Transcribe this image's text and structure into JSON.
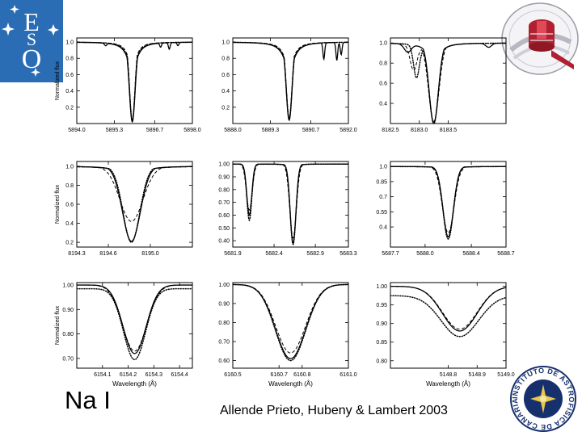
{
  "slide": {
    "title": "Na I",
    "citation": "Allende Prieto, Hubeny & Lambert 2003"
  },
  "colors": {
    "eso_blue": "#2a6db5",
    "iac_navy": "#16306e",
    "telescope_red": "#b02030",
    "line": "#000000"
  },
  "logos": {
    "eso": {
      "icon": "eso-logo-icon",
      "letters": [
        "E",
        "S",
        "O"
      ]
    },
    "top_right": {
      "icon": "telescope-dome-logo-icon"
    },
    "bottom_right": {
      "icon": "iac-seal-icon",
      "text": "INSTITUTO DE ASTROFISICA DE CANARIAS"
    }
  },
  "chart_data": [
    {
      "type": "line",
      "xlim": [
        5894.0,
        5898.0
      ],
      "ylim": [
        0.0,
        1.05
      ],
      "xticks": [
        5894.0,
        5895.3,
        5896.7,
        5898.0
      ],
      "xtick_labels": [
        "5894.0",
        "5895.3",
        "5896.7",
        "5898.0"
      ],
      "yticks": [
        0.2,
        0.4,
        0.6,
        0.8,
        1.0
      ],
      "ytick_labels": [
        "0.2",
        "0.4",
        "0.6",
        "0.8",
        "1.0"
      ],
      "ylabel": "Normalized flux",
      "xlabel": "",
      "series": [
        {
          "style": "solid",
          "lines": [
            {
              "center": 5895.92,
              "depth": 0.98,
              "width": 0.1,
              "wing": 0.5
            }
          ],
          "blends": [
            [
              5896.9,
              0.05,
              0.03
            ],
            [
              5897.2,
              0.08,
              0.03
            ],
            [
              5897.5,
              0.04,
              0.03
            ],
            [
              5895.0,
              0.03,
              0.04
            ]
          ]
        },
        {
          "style": "dashed",
          "lines": [
            {
              "center": 5895.92,
              "depth": 0.96,
              "width": 0.09,
              "wing": 0.45
            }
          ]
        },
        {
          "style": "dotted",
          "lines": [
            {
              "center": 5895.92,
              "depth": 0.97,
              "width": 0.095,
              "wing": 0.48
            }
          ]
        }
      ]
    },
    {
      "type": "line",
      "xlim": [
        5888.0,
        5892.0
      ],
      "ylim": [
        0.0,
        1.05
      ],
      "xticks": [
        5888.0,
        5889.3,
        5890.7,
        5892.0
      ],
      "xtick_labels": [
        "5888.0",
        "5889.3",
        "5890.7",
        "5892.0"
      ],
      "yticks": [
        0.2,
        0.4,
        0.6,
        0.8,
        1.0
      ],
      "ytick_labels": [
        "0.2",
        "0.4",
        "0.6",
        "0.8",
        "1.0"
      ],
      "ylabel": "",
      "xlabel": "",
      "series": [
        {
          "style": "solid",
          "lines": [
            {
              "center": 5889.95,
              "depth": 0.96,
              "width": 0.1,
              "wing": 0.55
            }
          ],
          "blends": [
            [
              5891.15,
              0.2,
              0.03
            ],
            [
              5891.6,
              0.22,
              0.03
            ],
            [
              5891.75,
              0.15,
              0.03
            ]
          ]
        },
        {
          "style": "dashed",
          "lines": [
            {
              "center": 5889.95,
              "depth": 0.93,
              "width": 0.095,
              "wing": 0.5
            }
          ]
        },
        {
          "style": "dotted",
          "lines": [
            {
              "center": 5889.95,
              "depth": 0.95,
              "width": 0.1,
              "wing": 0.52
            }
          ]
        }
      ]
    },
    {
      "type": "line",
      "xlim": [
        8182.5,
        8184.5
      ],
      "ylim": [
        0.2,
        1.05
      ],
      "xticks": [
        8182.5,
        8183.0,
        8183.5
      ],
      "xtick_labels": [
        "8182.5",
        "8183.0",
        "8183.5"
      ],
      "yticks": [
        0.4,
        0.6,
        0.8,
        1.0
      ],
      "ytick_labels": [
        "0.4",
        "0.6",
        "0.8",
        "1.0"
      ],
      "ylabel": "",
      "xlabel": "",
      "series": [
        {
          "style": "solid",
          "lines": [
            {
              "center": 8183.25,
              "depth": 0.8,
              "width": 0.08,
              "wing": 0.3
            }
          ],
          "blends": [
            [
              8182.8,
              0.08,
              0.06
            ],
            [
              8184.2,
              0.04,
              0.05
            ]
          ]
        },
        {
          "style": "dashed",
          "lines": [
            {
              "center": 8183.25,
              "depth": 0.78,
              "width": 0.09,
              "wing": 0.28
            }
          ],
          "blends": [
            [
              8182.9,
              0.25,
              0.06
            ]
          ]
        },
        {
          "style": "dotted",
          "lines": [
            {
              "center": 8183.25,
              "depth": 0.8,
              "width": 0.08,
              "wing": 0.3
            }
          ],
          "blends": [
            [
              8182.95,
              0.32,
              0.05
            ]
          ]
        }
      ]
    },
    {
      "type": "line",
      "xlim": [
        8194.3,
        8195.4
      ],
      "ylim": [
        0.15,
        1.05
      ],
      "xticks": [
        8194.3,
        8194.6,
        8195.0
      ],
      "xtick_labels": [
        "8194.3",
        "8194.6",
        "8195.0"
      ],
      "yticks": [
        0.2,
        0.4,
        0.6,
        0.8,
        1.0
      ],
      "ytick_labels": [
        "0.2",
        "0.4",
        "0.6",
        "0.8",
        "1.0"
      ],
      "ylabel": "Normalized flux",
      "xlabel": "",
      "series": [
        {
          "style": "solid",
          "lines": [
            {
              "center": 8194.82,
              "depth": 0.79,
              "width": 0.085,
              "wing": 0.2
            }
          ]
        },
        {
          "style": "dashed",
          "lines": [
            {
              "center": 8194.82,
              "depth": 0.58,
              "width": 0.11,
              "wing": 0.2
            }
          ]
        },
        {
          "style": "dotted",
          "lines": [
            {
              "center": 8194.82,
              "depth": 0.8,
              "width": 0.08,
              "wing": 0.21
            }
          ]
        }
      ]
    },
    {
      "type": "line",
      "xlim": [
        5681.9,
        5683.3
      ],
      "ylim": [
        0.35,
        1.02
      ],
      "xticks": [
        5681.9,
        5682.4,
        5682.9,
        5683.3
      ],
      "xtick_labels": [
        "5681.9",
        "5682.4",
        "5682.9",
        "5683.3"
      ],
      "yticks": [
        0.4,
        0.5,
        0.6,
        0.7,
        0.8,
        0.9,
        1.0
      ],
      "ytick_labels": [
        "0.40",
        "0.50",
        "0.60",
        "0.70",
        "0.80",
        "0.90",
        "1.00"
      ],
      "ylabel": "",
      "xlabel": "",
      "series": [
        {
          "style": "solid",
          "lines": [
            {
              "center": 5682.1,
              "depth": 0.4,
              "width": 0.03,
              "wing": 0.08
            },
            {
              "center": 5682.63,
              "depth": 0.62,
              "width": 0.035,
              "wing": 0.12
            }
          ]
        },
        {
          "style": "dashed",
          "lines": [
            {
              "center": 5682.1,
              "depth": 0.36,
              "width": 0.035,
              "wing": 0.08
            },
            {
              "center": 5682.63,
              "depth": 0.58,
              "width": 0.04,
              "wing": 0.11
            }
          ]
        },
        {
          "style": "dotted",
          "lines": [
            {
              "center": 5682.1,
              "depth": 0.44,
              "width": 0.03,
              "wing": 0.08
            },
            {
              "center": 5682.63,
              "depth": 0.63,
              "width": 0.035,
              "wing": 0.12
            }
          ]
        }
      ]
    },
    {
      "type": "line",
      "xlim": [
        5687.7,
        5688.7
      ],
      "ylim": [
        0.2,
        1.05
      ],
      "xticks": [
        5687.7,
        5688.0,
        5688.4,
        5688.7
      ],
      "xtick_labels": [
        "5687.7",
        "5688.0",
        "5688.4",
        "5688.7"
      ],
      "yticks": [
        0.4,
        0.55,
        0.7,
        0.85,
        1.0
      ],
      "ytick_labels": [
        "0.4",
        "0.55",
        "0.7",
        "0.85",
        "1.0"
      ],
      "ylabel": "",
      "xlabel": "",
      "series": [
        {
          "style": "solid",
          "lines": [
            {
              "center": 5688.2,
              "depth": 0.7,
              "width": 0.045,
              "wing": 0.12
            }
          ]
        },
        {
          "style": "dashed",
          "lines": [
            {
              "center": 5688.2,
              "depth": 0.66,
              "width": 0.05,
              "wing": 0.11
            }
          ]
        },
        {
          "style": "dotted",
          "lines": [
            {
              "center": 5688.2,
              "depth": 0.72,
              "width": 0.045,
              "wing": 0.12
            }
          ]
        }
      ]
    },
    {
      "type": "line",
      "xlim": [
        6154.0,
        6154.45
      ],
      "ylim": [
        0.66,
        1.01
      ],
      "xticks": [
        6154.1,
        6154.2,
        6154.3,
        6154.4
      ],
      "xtick_labels": [
        "6154.1",
        "6154.2",
        "6154.3",
        "6154.4"
      ],
      "yticks": [
        0.7,
        0.8,
        0.9,
        1.0
      ],
      "ytick_labels": [
        "0.70",
        "0.80",
        "0.90",
        "1.00"
      ],
      "ylabel": "Normalized flux",
      "xlabel": "Wavelength (Å)",
      "series": [
        {
          "style": "solid",
          "lines": [
            {
              "center": 6154.225,
              "depth": 0.28,
              "width": 0.045,
              "wing": 0.02
            }
          ]
        },
        {
          "style": "dashed",
          "lines": [
            {
              "center": 6154.225,
              "depth": 0.27,
              "width": 0.047,
              "wing": 0.02
            }
          ]
        },
        {
          "style": "dotted",
          "lines": [
            {
              "center": 6154.225,
              "depth": 0.29,
              "width": 0.043,
              "wing": 0.02
            }
          ],
          "continuum": 0.985
        }
      ]
    },
    {
      "type": "line",
      "xlim": [
        6160.5,
        6161.0
      ],
      "ylim": [
        0.56,
        1.01
      ],
      "xticks": [
        6160.5,
        6160.7,
        6160.8,
        6161.0
      ],
      "xtick_labels": [
        "6160.5",
        "6160.7",
        "6160.8",
        "6161.0"
      ],
      "yticks": [
        0.6,
        0.7,
        0.8,
        0.9,
        1.0
      ],
      "ytick_labels": [
        "0.60",
        "0.70",
        "0.80",
        "0.90",
        "1.00"
      ],
      "ylabel": "",
      "xlabel": "Wavelength (Å)",
      "series": [
        {
          "style": "solid",
          "lines": [
            {
              "center": 6160.75,
              "depth": 0.39,
              "width": 0.065,
              "wing": 0.02
            }
          ]
        },
        {
          "style": "dashed",
          "lines": [
            {
              "center": 6160.75,
              "depth": 0.36,
              "width": 0.065,
              "wing": 0.02
            }
          ]
        },
        {
          "style": "dotted",
          "lines": [
            {
              "center": 6160.75,
              "depth": 0.4,
              "width": 0.065,
              "wing": 0.02
            }
          ]
        }
      ]
    },
    {
      "type": "line",
      "xlim": [
        5148.6,
        5149.0
      ],
      "ylim": [
        0.78,
        1.01
      ],
      "xticks": [
        5148.8,
        5148.9,
        5149.0
      ],
      "xtick_labels": [
        "5148.8",
        "5148.9",
        "5149.0"
      ],
      "yticks": [
        0.8,
        0.85,
        0.9,
        0.95,
        1.0
      ],
      "ytick_labels": [
        "0.80",
        "0.85",
        "0.90",
        "0.95",
        "1.00"
      ],
      "ylabel": "",
      "xlabel": "Wavelength (Å)",
      "series": [
        {
          "style": "solid",
          "lines": [
            {
              "center": 5148.84,
              "depth": 0.12,
              "width": 0.06,
              "wing": 0.02
            }
          ]
        },
        {
          "style": "dashed",
          "lines": [
            {
              "center": 5148.84,
              "depth": 0.115,
              "width": 0.06,
              "wing": 0.02
            }
          ]
        },
        {
          "style": "dotted",
          "lines": [
            {
              "center": 5148.84,
              "depth": 0.11,
              "width": 0.065,
              "wing": 0.02
            }
          ],
          "continuum": 0.975
        }
      ]
    }
  ]
}
